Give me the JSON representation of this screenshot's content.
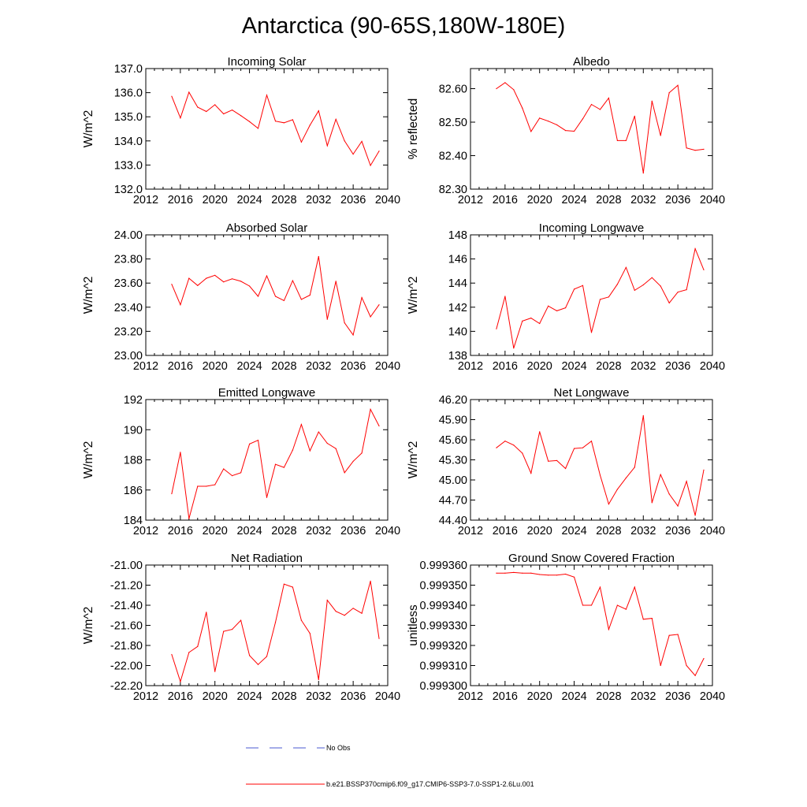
{
  "figure": {
    "title": "Antarctica (90-65S,180W-180E)"
  },
  "legend": {
    "entries": [
      {
        "label": "No Obs",
        "color": "#4a5ad0",
        "style": "dashed"
      },
      {
        "label": "b.e21.BSSP370cmip6.f09_g17.CMIP6-SSP3-7.0-SSP1-2.6Lu.001",
        "color": "#ff0000",
        "style": "solid"
      }
    ]
  },
  "chart_data": [
    {
      "type": "line",
      "title": "Incoming Solar",
      "xlabel": "",
      "ylabel": "W/m^2",
      "xlim": [
        2012,
        2040
      ],
      "xticks": [
        "2012",
        "2016",
        "2020",
        "2024",
        "2028",
        "2032",
        "2036",
        "2040"
      ],
      "ylim": [
        132.0,
        137.0
      ],
      "yticks": [
        "132.0",
        "133.0",
        "134.0",
        "135.0",
        "136.0",
        "137.0"
      ],
      "grid": false,
      "series": [
        {
          "name": "b.e21.BSSP370cmip6.f09_g17.CMIP6-SSP3-7.0-SSP1-2.6Lu.001",
          "color": "#ff0000",
          "x": [
            2015,
            2016,
            2017,
            2018,
            2019,
            2020,
            2021,
            2022,
            2023,
            2024,
            2025,
            2026,
            2027,
            2028,
            2029,
            2030,
            2031,
            2032,
            2033,
            2034,
            2035,
            2036,
            2037,
            2038,
            2039
          ],
          "y": [
            135.85,
            134.95,
            136.02,
            135.4,
            135.22,
            135.5,
            135.12,
            135.28,
            135.05,
            134.8,
            134.52,
            135.9,
            134.82,
            134.75,
            134.88,
            133.95,
            134.65,
            135.25,
            133.8,
            134.9,
            134.0,
            133.45,
            133.98,
            132.98,
            133.58
          ]
        }
      ]
    },
    {
      "type": "line",
      "title": "Albedo",
      "xlabel": "",
      "ylabel": "% reflected",
      "xlim": [
        2012,
        2040
      ],
      "xticks": [
        "2012",
        "2016",
        "2020",
        "2024",
        "2028",
        "2032",
        "2036",
        "2040"
      ],
      "ylim": [
        82.3,
        82.66
      ],
      "yticks": [
        "82.30",
        "82.40",
        "82.50",
        "82.60"
      ],
      "grid": false,
      "series": [
        {
          "name": "b.e21.BSSP370cmip6.f09_g17.CMIP6-SSP3-7.0-SSP1-2.6Lu.001",
          "color": "#ff0000",
          "x": [
            2015,
            2016,
            2017,
            2018,
            2019,
            2020,
            2021,
            2022,
            2023,
            2024,
            2025,
            2026,
            2027,
            2028,
            2029,
            2030,
            2031,
            2032,
            2033,
            2034,
            2035,
            2036,
            2037,
            2038,
            2039
          ],
          "y": [
            82.6,
            82.618,
            82.597,
            82.542,
            82.472,
            82.512,
            82.503,
            82.492,
            82.475,
            82.473,
            82.51,
            82.553,
            82.538,
            82.572,
            82.445,
            82.445,
            82.518,
            82.348,
            82.563,
            82.46,
            82.588,
            82.61,
            82.423,
            82.416,
            82.419
          ]
        }
      ]
    },
    {
      "type": "line",
      "title": "Absorbed Solar",
      "xlabel": "",
      "ylabel": "W/m^2",
      "xlim": [
        2012,
        2040
      ],
      "xticks": [
        "2012",
        "2016",
        "2020",
        "2024",
        "2028",
        "2032",
        "2036",
        "2040"
      ],
      "ylim": [
        23.0,
        24.0
      ],
      "yticks": [
        "23.00",
        "23.20",
        "23.40",
        "23.60",
        "23.80",
        "24.00"
      ],
      "grid": false,
      "series": [
        {
          "name": "b.e21.BSSP370cmip6.f09_g17.CMIP6-SSP3-7.0-SSP1-2.6Lu.001",
          "color": "#ff0000",
          "x": [
            2015,
            2016,
            2017,
            2018,
            2019,
            2020,
            2021,
            2022,
            2023,
            2024,
            2025,
            2026,
            2027,
            2028,
            2029,
            2030,
            2031,
            2032,
            2033,
            2034,
            2035,
            2036,
            2037,
            2038,
            2039
          ],
          "y": [
            23.59,
            23.42,
            23.64,
            23.58,
            23.64,
            23.665,
            23.61,
            23.635,
            23.615,
            23.575,
            23.49,
            23.66,
            23.49,
            23.455,
            23.62,
            23.465,
            23.5,
            23.82,
            23.3,
            23.615,
            23.27,
            23.17,
            23.48,
            23.32,
            23.42
          ]
        }
      ]
    },
    {
      "type": "line",
      "title": "Incoming Longwave",
      "xlabel": "",
      "ylabel": "W/m^2",
      "xlim": [
        2012,
        2040
      ],
      "xticks": [
        "2012",
        "2016",
        "2020",
        "2024",
        "2028",
        "2032",
        "2036",
        "2040"
      ],
      "ylim": [
        138,
        148
      ],
      "yticks": [
        "138",
        "140",
        "142",
        "144",
        "146",
        "148"
      ],
      "grid": false,
      "series": [
        {
          "name": "b.e21.BSSP370cmip6.f09_g17.CMIP6-SSP3-7.0-SSP1-2.6Lu.001",
          "color": "#ff0000",
          "x": [
            2015,
            2016,
            2017,
            2018,
            2019,
            2020,
            2021,
            2022,
            2023,
            2024,
            2025,
            2026,
            2027,
            2028,
            2029,
            2030,
            2031,
            2032,
            2033,
            2034,
            2035,
            2036,
            2037,
            2038,
            2039
          ],
          "y": [
            140.2,
            142.9,
            138.6,
            140.85,
            141.1,
            140.65,
            142.1,
            141.7,
            141.95,
            143.5,
            143.8,
            139.9,
            142.65,
            142.85,
            143.9,
            145.3,
            143.4,
            143.85,
            144.45,
            143.75,
            142.35,
            143.25,
            143.45,
            146.85,
            145.1
          ]
        }
      ]
    },
    {
      "type": "line",
      "title": "Emitted Longwave",
      "xlabel": "",
      "ylabel": "W/m^2",
      "xlim": [
        2012,
        2040
      ],
      "xticks": [
        "2012",
        "2016",
        "2020",
        "2024",
        "2028",
        "2032",
        "2036",
        "2040"
      ],
      "ylim": [
        184,
        192
      ],
      "yticks": [
        "184",
        "186",
        "188",
        "190",
        "192"
      ],
      "grid": false,
      "series": [
        {
          "name": "b.e21.BSSP370cmip6.f09_g17.CMIP6-SSP3-7.0-SSP1-2.6Lu.001",
          "color": "#ff0000",
          "x": [
            2015,
            2016,
            2017,
            2018,
            2019,
            2020,
            2021,
            2022,
            2023,
            2024,
            2025,
            2026,
            2027,
            2028,
            2029,
            2030,
            2031,
            2032,
            2033,
            2034,
            2035,
            2036,
            2037,
            2038,
            2039
          ],
          "y": [
            185.75,
            188.5,
            184.1,
            186.25,
            186.25,
            186.35,
            187.4,
            186.95,
            187.15,
            189.05,
            189.3,
            185.5,
            187.7,
            187.5,
            188.65,
            190.35,
            188.6,
            189.85,
            189.1,
            188.75,
            187.15,
            187.9,
            188.45,
            191.35,
            190.25
          ]
        }
      ]
    },
    {
      "type": "line",
      "title": "Net Longwave",
      "xlabel": "",
      "ylabel": "W/m^2",
      "xlim": [
        2012,
        2040
      ],
      "xticks": [
        "2012",
        "2016",
        "2020",
        "2024",
        "2028",
        "2032",
        "2036",
        "2040"
      ],
      "ylim": [
        44.4,
        46.2
      ],
      "yticks": [
        "44.40",
        "44.70",
        "45.00",
        "45.30",
        "45.60",
        "45.90",
        "46.20"
      ],
      "grid": false,
      "series": [
        {
          "name": "b.e21.BSSP370cmip6.f09_g17.CMIP6-SSP3-7.0-SSP1-2.6Lu.001",
          "color": "#ff0000",
          "x": [
            2015,
            2016,
            2017,
            2018,
            2019,
            2020,
            2021,
            2022,
            2023,
            2024,
            2025,
            2026,
            2027,
            2028,
            2029,
            2030,
            2031,
            2032,
            2033,
            2034,
            2035,
            2036,
            2037,
            2038,
            2039
          ],
          "y": [
            45.48,
            45.58,
            45.52,
            45.4,
            45.1,
            45.72,
            45.28,
            45.29,
            45.17,
            45.47,
            45.48,
            45.58,
            45.07,
            44.64,
            44.86,
            45.03,
            45.19,
            45.96,
            44.66,
            45.08,
            44.79,
            44.61,
            44.98,
            44.47,
            45.15
          ]
        }
      ]
    },
    {
      "type": "line",
      "title": "Net Radiation",
      "xlabel": "",
      "ylabel": "W/m^2",
      "xlim": [
        2012,
        2040
      ],
      "xticks": [
        "2012",
        "2016",
        "2020",
        "2024",
        "2028",
        "2032",
        "2036",
        "2040"
      ],
      "ylim": [
        -22.2,
        -21.0
      ],
      "yticks": [
        "-22.20",
        "-22.00",
        "-21.80",
        "-21.60",
        "-21.40",
        "-21.20",
        "-21.00"
      ],
      "grid": false,
      "series": [
        {
          "name": "b.e21.BSSP370cmip6.f09_g17.CMIP6-SSP3-7.0-SSP1-2.6Lu.001",
          "color": "#ff0000",
          "x": [
            2015,
            2016,
            2017,
            2018,
            2019,
            2020,
            2021,
            2022,
            2023,
            2024,
            2025,
            2026,
            2027,
            2028,
            2029,
            2030,
            2031,
            2032,
            2033,
            2034,
            2035,
            2036,
            2037,
            2038,
            2039
          ],
          "y": [
            -21.89,
            -22.16,
            -21.87,
            -21.81,
            -21.47,
            -22.06,
            -21.66,
            -21.64,
            -21.55,
            -21.9,
            -21.99,
            -21.91,
            -21.57,
            -21.19,
            -21.22,
            -21.55,
            -21.68,
            -22.14,
            -21.35,
            -21.46,
            -21.5,
            -21.43,
            -21.48,
            -21.16,
            -21.73
          ]
        }
      ]
    },
    {
      "type": "line",
      "title": "Ground Snow Covered Fraction",
      "xlabel": "",
      "ylabel": "unitless",
      "xlim": [
        2012,
        2040
      ],
      "xticks": [
        "2012",
        "2016",
        "2020",
        "2024",
        "2028",
        "2032",
        "2036",
        "2040"
      ],
      "ylim": [
        0.9993,
        0.99936
      ],
      "yticks": [
        "0.999300",
        "0.999310",
        "0.999320",
        "0.999330",
        "0.999340",
        "0.999350",
        "0.999360"
      ],
      "grid": false,
      "series": [
        {
          "name": "b.e21.BSSP370cmip6.f09_g17.CMIP6-SSP3-7.0-SSP1-2.6Lu.001",
          "color": "#ff0000",
          "x": [
            2015,
            2016,
            2017,
            2018,
            2019,
            2020,
            2021,
            2022,
            2023,
            2024,
            2025,
            2026,
            2027,
            2028,
            2029,
            2030,
            2031,
            2032,
            2033,
            2034,
            2035,
            2036,
            2037,
            2038,
            2039
          ],
          "y": [
            0.999356,
            0.999356,
            0.9993563,
            0.999356,
            0.999356,
            0.9993553,
            0.999355,
            0.999355,
            0.9993555,
            0.999354,
            0.99934,
            0.99934,
            0.999349,
            0.999328,
            0.99934,
            0.999338,
            0.999349,
            0.999333,
            0.9993335,
            0.99931,
            0.999325,
            0.9993255,
            0.99931,
            0.999305,
            0.9993135
          ]
        }
      ]
    }
  ]
}
